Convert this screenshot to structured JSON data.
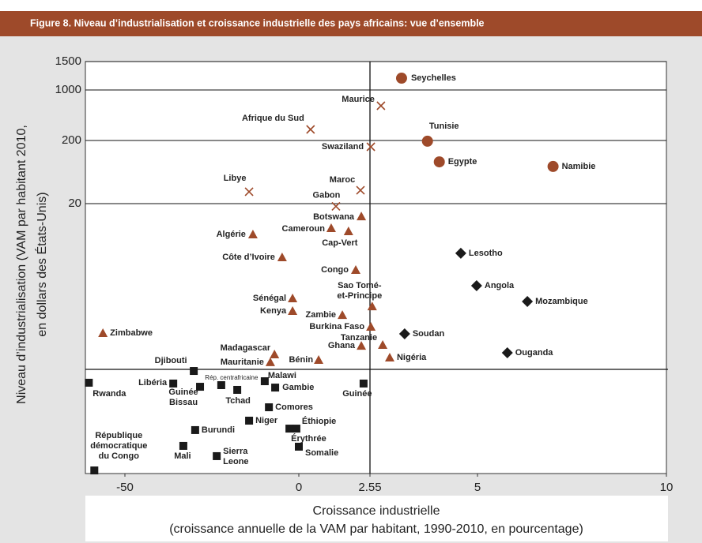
{
  "chart_data": {
    "type": "scatter",
    "title": "Figure 8. Niveau d’industrialisation et croissance industrielle des pays africains: vue d’ensemble",
    "xlabel": "Croissance industrielle\n(croissance annuelle de la VAM par habitant, 1990-2010, en pourcentage)",
    "ylabel": "Niveau d’industrialisation (VAM par habitant 2010,\nen dollars des États-Unis)",
    "xlim": [
      -61.5,
      10
    ],
    "xticks": [
      -50,
      0,
      2.55,
      5,
      10
    ],
    "ylim": [
      0,
      1500
    ],
    "yticks": [
      20,
      200,
      1000,
      1500
    ],
    "grid": true,
    "series": [
      {
        "marker": "circle",
        "color": "#9e4a2a",
        "labels": [
          "Seychelles",
          "Tunisie",
          "Egypte",
          "Namibie"
        ],
        "x": [
          3.27,
          3.86,
          4.13,
          7.0
        ],
        "y": [
          1208,
          198,
          139,
          126
        ]
      },
      {
        "marker": "cross",
        "color": "#9e4a2a",
        "labels": [
          "Maurice",
          "Afrique du Sud",
          "Swaziland",
          "Libye",
          "Maroc",
          "Gabon"
        ],
        "x": [
          2.8,
          0.42,
          2.57,
          -14.3,
          2.21,
          1.33
        ],
        "y": [
          750,
          375,
          182,
          54,
          58,
          19.8
        ]
      },
      {
        "marker": "triangle",
        "color": "#9e4a2a",
        "labels": [
          "Botswana",
          "Cameroun",
          "Cap-Vert",
          "Algérie",
          "Côte d’Ivoire",
          "Congo",
          "Sao Tomé-\net-Principe",
          "Sénégal",
          "Kenya",
          "Zambie",
          "Burkina Faso",
          "Tanzanie",
          "Ghana",
          "Zimbabwe",
          "Madagascar",
          "Mauritanie",
          "Bénin",
          "Nigéria"
        ],
        "x": [
          2.24,
          1.16,
          1.78,
          -13.2,
          -4.8,
          2.04,
          2.6,
          -1.8,
          -1.8,
          1.56,
          2.57,
          2.84,
          2.24,
          -56.4,
          -7.0,
          -8.2,
          0.71,
          3.0
        ],
        "y": [
          19.06,
          18.19,
          17.95,
          17.72,
          16.02,
          15.09,
          12.39,
          12.98,
          12.05,
          11.75,
          10.88,
          9.53,
          9.47,
          10.41,
          8.83,
          8.25,
          8.42,
          8.6
        ]
      },
      {
        "marker": "diamond",
        "color": "#1a1a1a",
        "labels": [
          "Lesotho",
          "Angola",
          "Mozambique",
          "Soudan",
          "Ouganda"
        ],
        "x": [
          4.62,
          4.98,
          6.32,
          3.34,
          5.79
        ],
        "y": [
          16.32,
          13.92,
          12.75,
          10.35,
          8.95
        ]
      },
      {
        "marker": "square",
        "color": "#1a1a1a",
        "labels": [
          "Djibouti",
          "Rwanda",
          "Libéria",
          "Guinée\nBissau",
          "Rép. centrafricaine",
          "Tchad",
          "Malawi",
          "Gambie",
          "Comores",
          "Guinée",
          "Niger",
          "Burundi",
          "Éthiopie",
          "Érythrée",
          "Mali",
          "Sierra\nLeone",
          "Somalie",
          "République\ndémocratique\ndu Congo"
        ],
        "x": [
          -30.2,
          -60.5,
          -36.1,
          -28.4,
          -22.3,
          -17.7,
          -9.8,
          -6.8,
          -8.6,
          2.32,
          -14.3,
          -29.8,
          -0.7,
          -2.7,
          -33.2,
          -23.6,
          0,
          -58.9
        ],
        "y": [
          7.6,
          6.73,
          6.67,
          6.43,
          6.55,
          6.2,
          6.84,
          6.37,
          4.91,
          6.67,
          3.92,
          3.22,
          3.33,
          3.33,
          2.05,
          1.29,
          1.99,
          0.23
        ]
      }
    ]
  }
}
